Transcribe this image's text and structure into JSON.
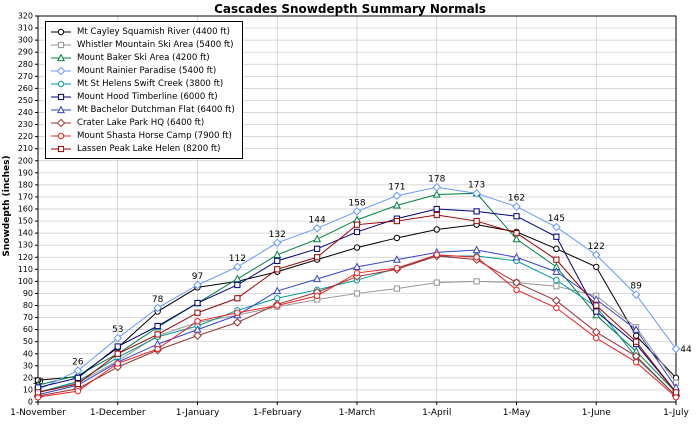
{
  "chart_data": {
    "type": "line",
    "title": "Cascades Snowdepth Summary Normals",
    "xlabel": "",
    "ylabel": "Snowdepth (inches)",
    "ylim": [
      0,
      320
    ],
    "ytick_step": 10,
    "grid": true,
    "legend_position": "top-left",
    "x_tick_labels": [
      "1-November",
      "1-December",
      "1-January",
      "1-February",
      "1-March",
      "1-April",
      "1-May",
      "1-June",
      "1-July"
    ],
    "x_points": [
      "1-Nov",
      "15-Nov",
      "1-Dec",
      "15-Dec",
      "1-Jan",
      "15-Jan",
      "1-Feb",
      "15-Feb",
      "1-Mar",
      "15-Mar",
      "1-Apr",
      "15-Apr",
      "1-May",
      "15-May",
      "1-Jun",
      "15-Jun",
      "1-Jul"
    ],
    "series": [
      {
        "name": "Mt Cayley Squamish River (4400 ft)",
        "color": "#000000",
        "marker": "circle",
        "point_labels": false,
        "values": [
          18,
          21,
          45,
          75,
          95,
          100,
          108,
          118,
          128,
          136,
          143,
          147,
          141,
          127,
          112,
          55,
          20
        ]
      },
      {
        "name": "Whistler Mountain Ski Area (5400 ft)",
        "color": "#969696",
        "marker": "square",
        "point_labels": false,
        "values": [
          8,
          16,
          34,
          55,
          66,
          72,
          79,
          85,
          90,
          94,
          99,
          100,
          99,
          96,
          88,
          62,
          16
        ]
      },
      {
        "name": "Mount Baker Ski Area (4200 ft)",
        "color": "#008040",
        "marker": "triangle",
        "point_labels": false,
        "values": [
          14,
          22,
          40,
          62,
          82,
          102,
          122,
          135,
          151,
          163,
          172,
          173,
          135,
          112,
          72,
          42,
          8
        ]
      },
      {
        "name": "Mount Rainier Paradise (5400 ft)",
        "color": "#6699ff",
        "marker": "diamond",
        "point_labels": true,
        "values": [
          10,
          26,
          53,
          78,
          97,
          112,
          132,
          144,
          158,
          171,
          178,
          173,
          162,
          145,
          122,
          89,
          44
        ]
      },
      {
        "name": "Mt St Helens Swift Creek (3800 ft)",
        "color": "#009999",
        "marker": "circle",
        "point_labels": false,
        "values": [
          8,
          17,
          37,
          54,
          63,
          76,
          86,
          93,
          101,
          111,
          121,
          121,
          117,
          101,
          79,
          37,
          5
        ]
      },
      {
        "name": "Mount Hood Timberline (6000 ft)",
        "color": "#000080",
        "marker": "square",
        "point_labels": false,
        "values": [
          12,
          20,
          46,
          63,
          82,
          97,
          117,
          127,
          141,
          152,
          160,
          158,
          154,
          137,
          75,
          48,
          8
        ]
      },
      {
        "name": "Mt Bachelor Dutchman Flat (6400 ft)",
        "color": "#3344cc",
        "marker": "triangle",
        "point_labels": false,
        "values": [
          6,
          14,
          33,
          48,
          60,
          72,
          92,
          102,
          112,
          118,
          124,
          126,
          120,
          108,
          85,
          60,
          12
        ]
      },
      {
        "name": "Crater Lake Park HQ (6400 ft)",
        "color": "#993333",
        "marker": "diamond",
        "point_labels": false,
        "values": [
          5,
          11,
          29,
          43,
          55,
          66,
          81,
          91,
          104,
          110,
          121,
          118,
          99,
          84,
          58,
          38,
          5
        ]
      },
      {
        "name": "Mount Shasta Horse Camp (7900 ft)",
        "color": "#ee2222",
        "marker": "circle",
        "point_labels": false,
        "values": [
          4,
          9,
          32,
          44,
          67,
          74,
          80,
          88,
          107,
          111,
          122,
          120,
          93,
          78,
          53,
          33,
          4
        ]
      },
      {
        "name": "Lassen Peak Lake Helen (8200 ft)",
        "color": "#990000",
        "marker": "square",
        "point_labels": false,
        "values": [
          8,
          15,
          40,
          56,
          74,
          86,
          110,
          120,
          147,
          150,
          155,
          150,
          140,
          118,
          80,
          50,
          8
        ]
      }
    ],
    "point_label_values": [
      10,
      26,
      53,
      78,
      97,
      112,
      132,
      144,
      158,
      171,
      178,
      173,
      162,
      145,
      122,
      89,
      44
    ]
  }
}
